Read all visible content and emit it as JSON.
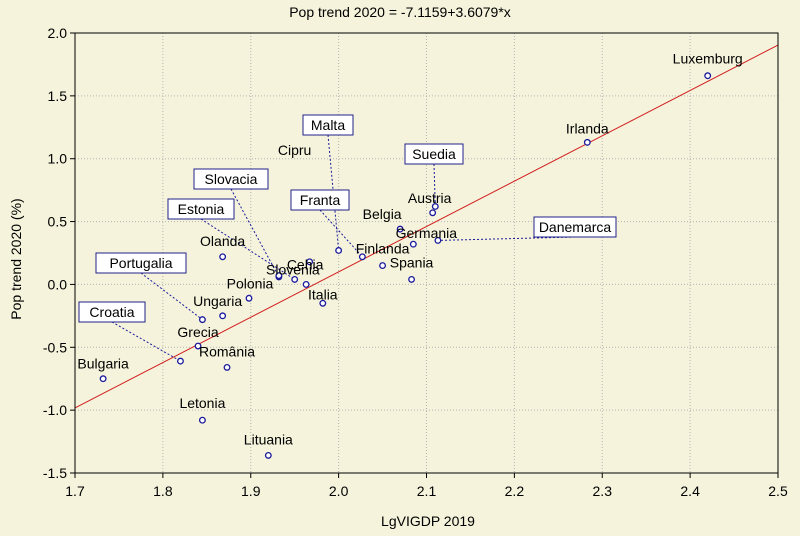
{
  "chart_data": {
    "type": "scatter",
    "title": "Pop trend 2020 = -7.1159+3.6079*x",
    "xlabel": "LgVIGDP 2019",
    "ylabel": "Pop trend 2020 (%)",
    "xlim": [
      1.7,
      2.5
    ],
    "ylim": [
      -1.5,
      2.0
    ],
    "xticks": [
      "1.7",
      "1.8",
      "1.9",
      "2.0",
      "2.1",
      "2.2",
      "2.3",
      "2.4",
      "2.5"
    ],
    "yticks": [
      "-1.5",
      "-1.0",
      "-0.5",
      "0.0",
      "0.5",
      "1.0",
      "1.5",
      "2.0"
    ],
    "grid": true,
    "regression": {
      "intercept": -7.1159,
      "slope": 3.6079
    },
    "colors": {
      "points": "#1a1a9c",
      "line": "#d21e1e",
      "grid": "#b4b4b4",
      "background": "#f5f3dc"
    },
    "points": [
      {
        "name": "Luxemburg",
        "x": 2.42,
        "y": 1.66,
        "label_style": "plain"
      },
      {
        "name": "Irlanda",
        "x": 2.283,
        "y": 1.13,
        "label_style": "plain"
      },
      {
        "name": "Malta",
        "x": 2.0,
        "y": 0.27,
        "label_style": "boxed"
      },
      {
        "name": "Suedia",
        "x": 2.11,
        "y": 0.62,
        "label_style": "boxed"
      },
      {
        "name": "Austria",
        "x": 2.107,
        "y": 0.57,
        "label_style": "plain"
      },
      {
        "name": "Cipru",
        "x": 1.967,
        "y": 0.18,
        "label_style": "plain"
      },
      {
        "name": "Slovacia",
        "x": 1.932,
        "y": 0.06,
        "label_style": "boxed"
      },
      {
        "name": "Franta",
        "x": 2.027,
        "y": 0.22,
        "label_style": "boxed"
      },
      {
        "name": "Belgia",
        "x": 2.07,
        "y": 0.44,
        "label_style": "plain"
      },
      {
        "name": "Germania",
        "x": 2.085,
        "y": 0.32,
        "label_style": "plain"
      },
      {
        "name": "Danemarca",
        "x": 2.113,
        "y": 0.35,
        "label_style": "boxed"
      },
      {
        "name": "Estonia",
        "x": 1.95,
        "y": 0.04,
        "label_style": "boxed"
      },
      {
        "name": "Olanda",
        "x": 1.868,
        "y": 0.22,
        "label_style": "plain"
      },
      {
        "name": "Cehia",
        "x": 1.963,
        "y": 0.0,
        "label_style": "plain"
      },
      {
        "name": "Finlanda",
        "x": 2.05,
        "y": 0.15,
        "label_style": "plain"
      },
      {
        "name": "Portugalia",
        "x": 1.845,
        "y": -0.28,
        "label_style": "boxed"
      },
      {
        "name": "Slovenia",
        "x": 1.932,
        "y": 0.07,
        "label_style": "plain"
      },
      {
        "name": "Spania",
        "x": 2.083,
        "y": 0.04,
        "label_style": "plain"
      },
      {
        "name": "Polonia",
        "x": 1.898,
        "y": -0.11,
        "label_style": "plain"
      },
      {
        "name": "Italia",
        "x": 1.982,
        "y": -0.15,
        "label_style": "plain"
      },
      {
        "name": "Ungaria",
        "x": 1.868,
        "y": -0.25,
        "label_style": "plain"
      },
      {
        "name": "Croatia",
        "x": 1.82,
        "y": -0.61,
        "label_style": "boxed"
      },
      {
        "name": "Grecia",
        "x": 1.84,
        "y": -0.49,
        "label_style": "plain"
      },
      {
        "name": "România",
        "x": 1.873,
        "y": -0.66,
        "label_style": "plain"
      },
      {
        "name": "Bulgaria",
        "x": 1.732,
        "y": -0.75,
        "label_style": "plain"
      },
      {
        "name": "Letonia",
        "x": 1.845,
        "y": -1.08,
        "label_style": "plain"
      },
      {
        "name": "Lituania",
        "x": 1.92,
        "y": -1.36,
        "label_style": "plain"
      }
    ]
  }
}
